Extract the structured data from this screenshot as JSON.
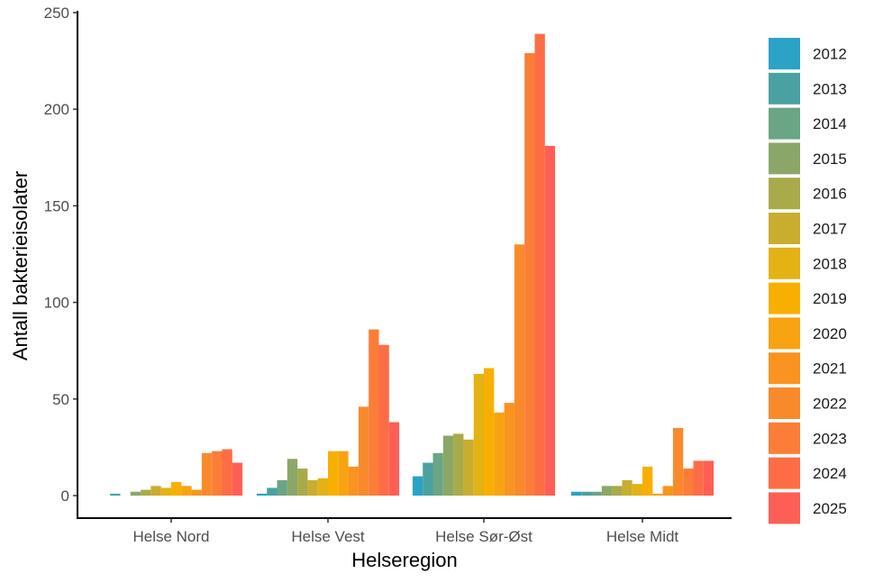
{
  "chart_data": {
    "type": "bar",
    "title": "",
    "xlabel": "Helseregion",
    "ylabel": "Antall bakterieisolater",
    "ylim": [
      0,
      250
    ],
    "yticks": [
      0,
      50,
      100,
      150,
      200,
      250
    ],
    "grid": false,
    "legend_position": "right",
    "categories": [
      "Helse Nord",
      "Helse Vest",
      "Helse Sør-Øst",
      "Helse Midt"
    ],
    "series": [
      {
        "name": "2012",
        "color": "#2BA3C6",
        "values": [
          0,
          1,
          10,
          2
        ]
      },
      {
        "name": "2013",
        "color": "#49A2A1",
        "values": [
          1,
          4,
          17,
          2
        ]
      },
      {
        "name": "2014",
        "color": "#6AA585",
        "values": [
          0,
          8,
          22,
          2
        ]
      },
      {
        "name": "2015",
        "color": "#8BA767",
        "values": [
          2,
          19,
          31,
          5
        ]
      },
      {
        "name": "2016",
        "color": "#A9AA4A",
        "values": [
          3,
          14,
          32,
          5
        ]
      },
      {
        "name": "2017",
        "color": "#C9AD2E",
        "values": [
          5,
          8,
          29,
          8
        ]
      },
      {
        "name": "2018",
        "color": "#E3B214",
        "values": [
          4,
          9,
          63,
          6
        ]
      },
      {
        "name": "2019",
        "color": "#F8B000",
        "values": [
          7,
          23,
          66,
          15
        ]
      },
      {
        "name": "2020",
        "color": "#F8A312",
        "values": [
          5,
          23,
          43,
          1
        ]
      },
      {
        "name": "2021",
        "color": "#F8941F",
        "values": [
          3,
          15,
          48,
          5
        ]
      },
      {
        "name": "2022",
        "color": "#F98A2C",
        "values": [
          22,
          46,
          130,
          35
        ]
      },
      {
        "name": "2023",
        "color": "#FB7D38",
        "values": [
          23,
          86,
          229,
          14
        ]
      },
      {
        "name": "2024",
        "color": "#FD6D45",
        "values": [
          24,
          78,
          239,
          18
        ]
      },
      {
        "name": "2025",
        "color": "#FE5F55",
        "values": [
          17,
          38,
          181,
          18
        ]
      }
    ]
  }
}
